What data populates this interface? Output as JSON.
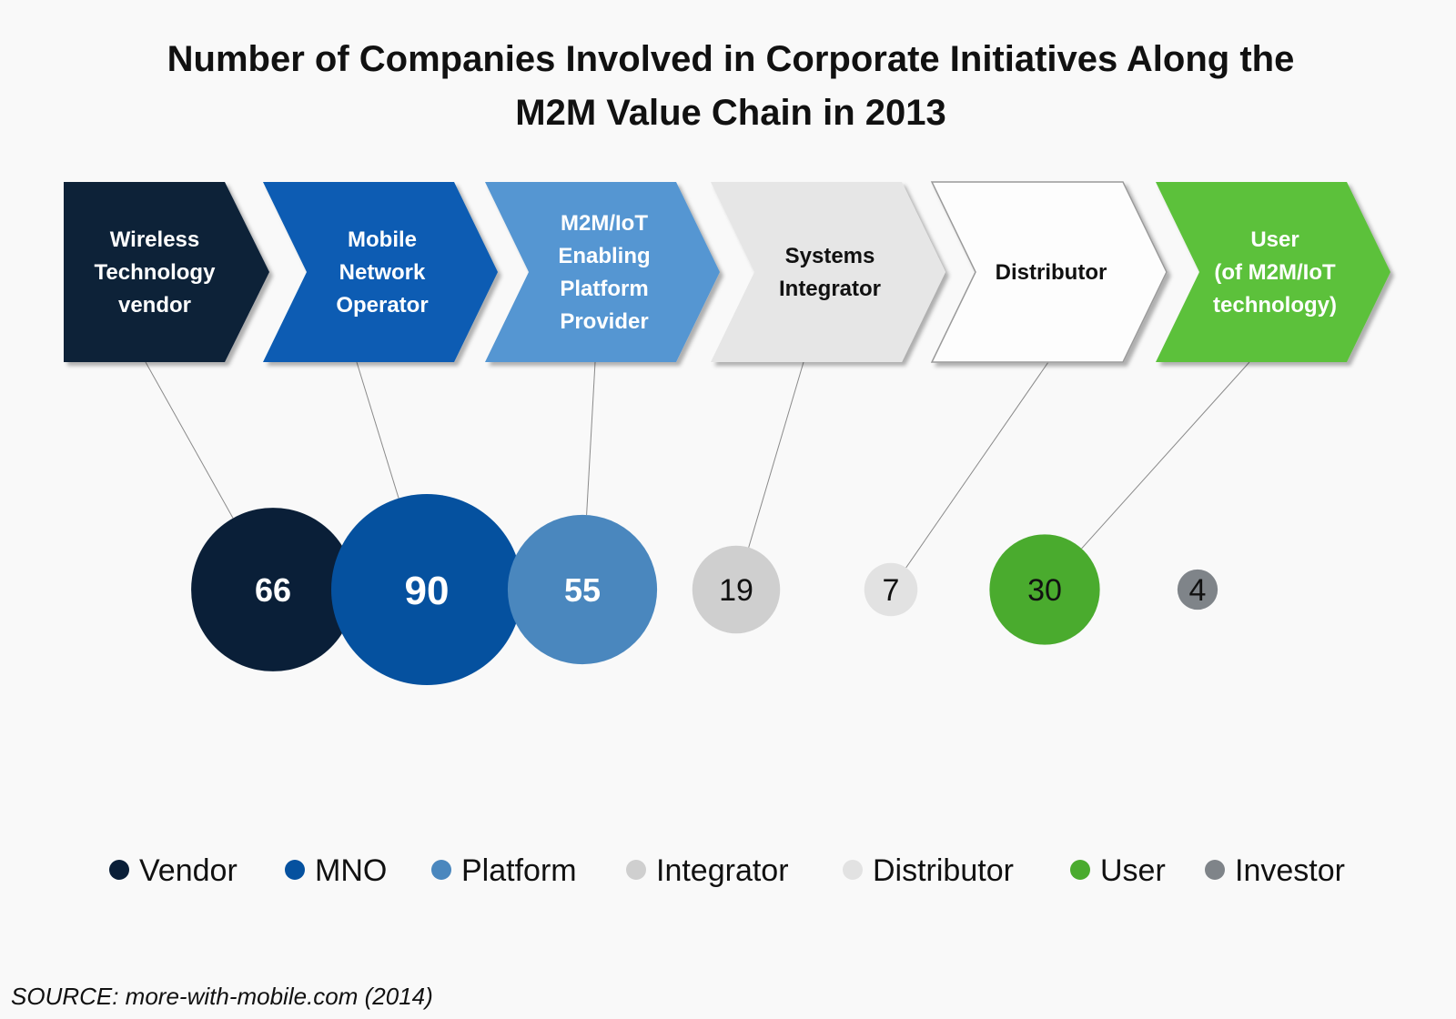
{
  "title": [
    "Number of Companies Involved in Corporate Initiatives Along the",
    "M2M Value Chain in 2013"
  ],
  "source": "SOURCE: more-with-mobile.com (2014)",
  "chart_data": {
    "type": "bubble",
    "title": "Number of Companies Involved in Corporate Initiatives Along the M2M Value Chain in 2013",
    "value_chain": [
      {
        "lines": [
          "Wireless",
          "Technology",
          "vendor"
        ],
        "fill": "#0a2039",
        "text_color": "#ffffff",
        "category": "Vendor"
      },
      {
        "lines": [
          "Mobile",
          "Network",
          "Operator"
        ],
        "fill": "#075bb3",
        "text_color": "#ffffff",
        "category": "MNO"
      },
      {
        "lines": [
          "M2M/IoT",
          "Enabling",
          "Platform",
          "Provider"
        ],
        "fill": "#5596d2",
        "text_color": "#ffffff",
        "category": "Platform"
      },
      {
        "lines": [
          "Systems",
          "Integrator"
        ],
        "fill": "#e6e6e6",
        "text_color": "#111111",
        "category": "Integrator"
      },
      {
        "lines": [
          "Distributor"
        ],
        "fill": "#fdfdfd",
        "text_color": "#111111",
        "category": "Distributor"
      },
      {
        "lines": [
          "User",
          "(of M2M/IoT",
          "technology)"
        ],
        "fill": "#5cc13a",
        "text_color": "#ffffff",
        "category": "User"
      }
    ],
    "bubbles": [
      {
        "category": "Vendor",
        "value": 66,
        "color": "#0a1f38",
        "label_color": "#ffffff"
      },
      {
        "category": "MNO",
        "value": 90,
        "color": "#05519f",
        "label_color": "#ffffff"
      },
      {
        "category": "Platform",
        "value": 55,
        "color": "#4a87be",
        "label_color": "#ffffff"
      },
      {
        "category": "Integrator",
        "value": 19,
        "color": "#cfcfcf",
        "label_color": "#111111"
      },
      {
        "category": "Distributor",
        "value": 7,
        "color": "#e2e2e2",
        "label_color": "#111111"
      },
      {
        "category": "User",
        "value": 30,
        "color": "#4aab2e",
        "label_color": "#111111"
      },
      {
        "category": "Investor",
        "value": 4,
        "color": "#7f8489",
        "label_color": "#111111"
      }
    ],
    "legend": {
      "position": "bottom",
      "entries": [
        "Vendor",
        "MNO",
        "Platform",
        "Integrator",
        "Distributor",
        "User",
        "Investor"
      ]
    }
  }
}
